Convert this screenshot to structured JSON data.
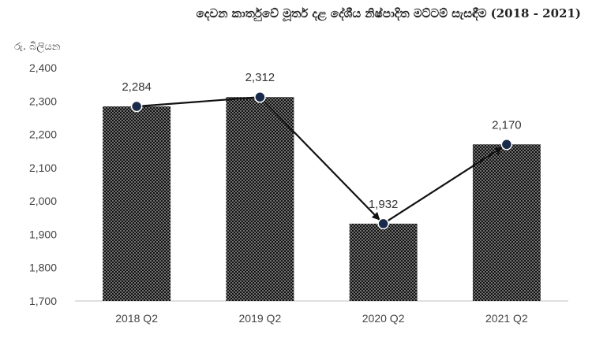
{
  "chart_data": {
    "type": "bar",
    "title": "දෙවන කාර්තුවේ මූර්ත දළ දේශීය නිෂ්පාදිත මට්ටම් සැසඳීම (2018 - 2021)",
    "ylabel": "රු. බිලියන",
    "xlabel": "",
    "categories": [
      "2018 Q2",
      "2019 Q2",
      "2020 Q2",
      "2021 Q2"
    ],
    "values": [
      2284,
      2312,
      1932,
      2170
    ],
    "data_labels": [
      "2,284",
      "2,312",
      "1,932",
      "2,170"
    ],
    "ylim": [
      1700,
      2400
    ],
    "yticks": [
      "1,700",
      "1,800",
      "1,900",
      "2,000",
      "2,100",
      "2,200",
      "2,300",
      "2,400"
    ],
    "overlay_line": true,
    "grid": false,
    "colors": {
      "bar_fill": "#111111",
      "bar_dot": "#ffffff",
      "marker": "#1a2a4a",
      "line": "#111111"
    }
  }
}
